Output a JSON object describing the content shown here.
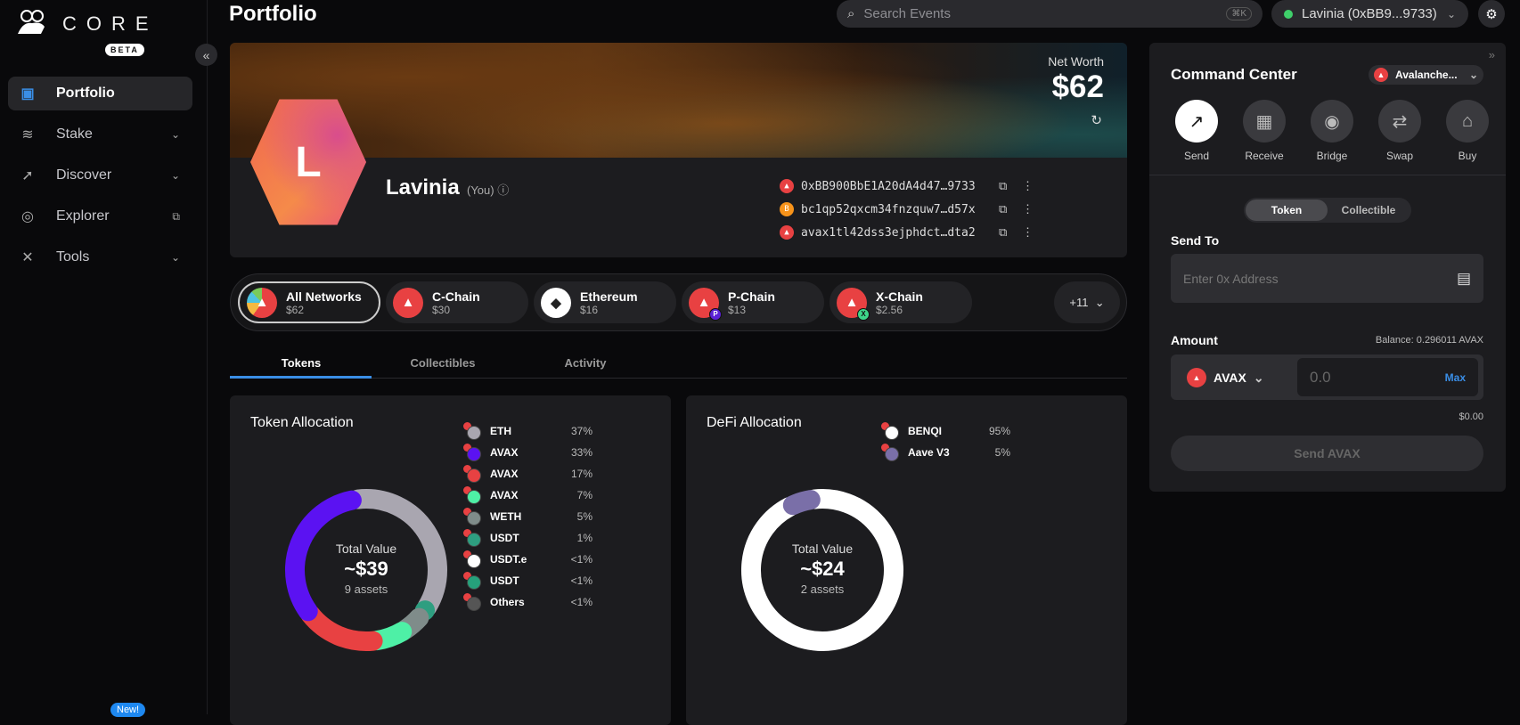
{
  "brand": {
    "name": "CORE",
    "badge": "BETA",
    "new_badge": "New!"
  },
  "sidebar": {
    "items": [
      {
        "label": "Portfolio",
        "icon": "wallet-icon"
      },
      {
        "label": "Stake",
        "icon": "layers-icon"
      },
      {
        "label": "Discover",
        "icon": "rocket-icon"
      },
      {
        "label": "Explorer",
        "icon": "compass-icon"
      },
      {
        "label": "Tools",
        "icon": "tools-icon"
      }
    ]
  },
  "header": {
    "title": "Portfolio",
    "search_placeholder": "Search Events",
    "search_shortcut": "⌘K",
    "account": "Lavinia (0xBB9...9733)"
  },
  "profile": {
    "initial": "L",
    "name": "Lavinia",
    "you": "(You)",
    "net_worth_label": "Net Worth",
    "net_worth": "$62",
    "addresses": [
      "0xBB900BbE1A20dA4d47…9733",
      "bc1qp52qxcm34fnzquw7…d57x",
      "avax1tl42dss3ejphdct…dta2"
    ]
  },
  "networks": [
    {
      "name": "All Networks",
      "value": "$62"
    },
    {
      "name": "C-Chain",
      "value": "$30"
    },
    {
      "name": "Ethereum",
      "value": "$16"
    },
    {
      "name": "P-Chain",
      "value": "$13"
    },
    {
      "name": "X-Chain",
      "value": "$2.56"
    }
  ],
  "networks_more": "+11",
  "tabs": [
    "Tokens",
    "Collectibles",
    "Activity"
  ],
  "token_allocation": {
    "title": "Token Allocation",
    "total_label": "Total Value",
    "total": "~$39",
    "count": "9 assets",
    "items": [
      {
        "symbol": "ETH",
        "pct": "37%",
        "color": "#a9a6b0"
      },
      {
        "symbol": "AVAX",
        "pct": "33%",
        "color": "#5b12f2"
      },
      {
        "symbol": "AVAX",
        "pct": "17%",
        "color": "#e84142"
      },
      {
        "symbol": "AVAX",
        "pct": "7%",
        "color": "#4ef0a6"
      },
      {
        "symbol": "WETH",
        "pct": "5%",
        "color": "#7f8c8a"
      },
      {
        "symbol": "USDT",
        "pct": "1%",
        "color": "#2e9e80"
      },
      {
        "symbol": "USDT.e",
        "pct": "<1%",
        "color": "#ffffff"
      },
      {
        "symbol": "USDT",
        "pct": "<1%",
        "color": "#26a17b"
      },
      {
        "symbol": "Others",
        "pct": "<1%",
        "color": "#555555"
      }
    ]
  },
  "defi_allocation": {
    "title": "DeFi Allocation",
    "total_label": "Total Value",
    "total": "~$24",
    "count": "2 assets",
    "items": [
      {
        "symbol": "BENQI",
        "pct": "95%",
        "color": "#ffffff"
      },
      {
        "symbol": "Aave V3",
        "pct": "5%",
        "color": "#7a6fa8"
      }
    ]
  },
  "command_center": {
    "title": "Command Center",
    "network": "Avalanche...",
    "actions": [
      "Send",
      "Receive",
      "Bridge",
      "Swap",
      "Buy"
    ],
    "toggle": [
      "Token",
      "Collectible"
    ],
    "send_to_label": "Send To",
    "address_placeholder": "Enter 0x Address",
    "amount_label": "Amount",
    "balance": "Balance: 0.296011 AVAX",
    "token": "AVAX",
    "amount_placeholder": "0.0",
    "max": "Max",
    "usd": "$0.00",
    "send_button": "Send AVAX"
  },
  "colors": {
    "avax": "#e84142",
    "accent": "#3a8ee6",
    "online": "#3fcf6a"
  }
}
